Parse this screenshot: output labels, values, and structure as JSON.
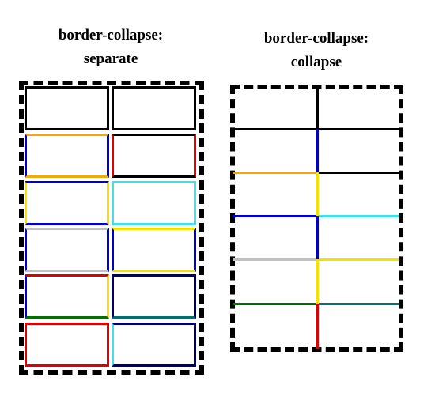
{
  "titles": {
    "separate": {
      "line1": "border-collapse:",
      "line2": "separate"
    },
    "collapse": {
      "line1": "border-collapse:",
      "line2": "collapse"
    }
  },
  "colors": {
    "black": "#000000",
    "orange": "#f5a800",
    "blue": "#0000c8",
    "red": "#e00000",
    "yellow": "#f5e000",
    "cyan": "#40e0e8",
    "gray": "#c0c0c0",
    "navy": "#00006e",
    "green": "#007000",
    "teal": "#007070"
  },
  "separate_cells": [
    [
      {
        "top": "black",
        "right": "black",
        "bottom": "black",
        "left": "black"
      },
      {
        "top": "black",
        "right": "black",
        "bottom": "black",
        "left": "black"
      }
    ],
    [
      {
        "top": "orange",
        "right": "blue",
        "bottom": "orange",
        "left": "blue"
      },
      {
        "top": "black",
        "right": "red",
        "bottom": "black",
        "left": "red"
      }
    ],
    [
      {
        "top": "blue",
        "right": "yellow",
        "bottom": "blue",
        "left": "yellow"
      },
      {
        "top": "cyan",
        "right": "cyan",
        "bottom": "cyan",
        "left": "cyan"
      }
    ],
    [
      {
        "top": "gray",
        "right": "blue",
        "bottom": "gray",
        "left": "blue"
      },
      {
        "top": "yellow",
        "right": "blue",
        "bottom": "yellow",
        "left": "blue"
      }
    ],
    [
      {
        "top": "red",
        "right": "yellow",
        "bottom": "green",
        "left": "blue"
      },
      {
        "top": "navy",
        "right": "navy",
        "bottom": "teal",
        "left": "navy"
      }
    ],
    [
      {
        "top": "red",
        "right": "red",
        "bottom": "red",
        "left": "red"
      },
      {
        "top": "navy",
        "right": "navy",
        "bottom": "navy",
        "left": "cyan"
      }
    ]
  ],
  "collapse_rows": {
    "horizontal": [
      {
        "left": "black",
        "right": "black"
      },
      {
        "left": "orange",
        "right": "black"
      },
      {
        "left": "blue",
        "right": "cyan"
      },
      {
        "left": "gray",
        "right": "yellow"
      },
      {
        "left": "green",
        "right": "teal"
      }
    ],
    "vertical": [
      "black",
      "blue",
      "yellow",
      "blue",
      "yellow",
      "red"
    ]
  }
}
